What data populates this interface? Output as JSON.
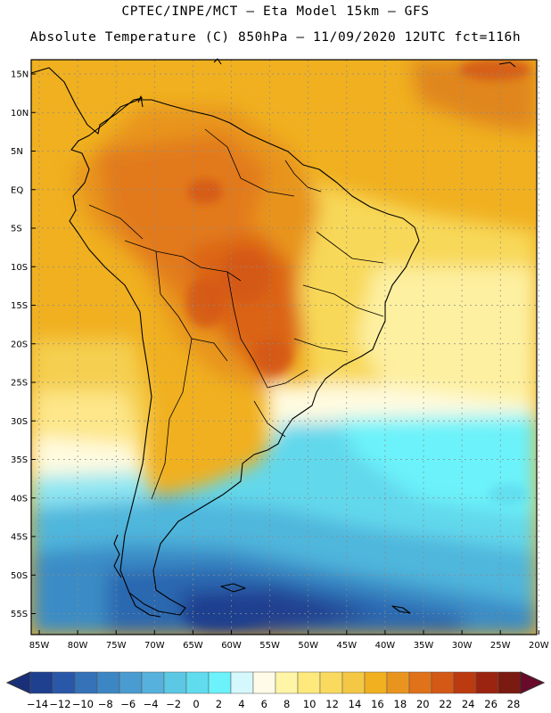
{
  "header": {
    "line1": "CPTEC/INPE/MCT –  Eta Model 15km – GFS",
    "line2": "Absolute Temperature (C) 850hPa – 11/09/2020 12UTC fct=116h"
  },
  "map": {
    "lat_labels": [
      "15N",
      "10N",
      "5N",
      "EQ",
      "5S",
      "10S",
      "15S",
      "20S",
      "25S",
      "30S",
      "35S",
      "40S",
      "45S",
      "50S",
      "55S"
    ],
    "lon_labels": [
      "85W",
      "80W",
      "75W",
      "70W",
      "65W",
      "60W",
      "55W",
      "50W",
      "45W",
      "40W",
      "35W",
      "30W",
      "25W",
      "20W"
    ]
  },
  "colorbar": {
    "labels": [
      "-14",
      "-12",
      "-10",
      "-8",
      "-6",
      "-4",
      "-2",
      "0",
      "2",
      "4",
      "6",
      "8",
      "10",
      "12",
      "14",
      "16",
      "18",
      "20",
      "22",
      "24",
      "26",
      "28"
    ],
    "colors": [
      "#1f3f8f",
      "#2a58a8",
      "#3572b8",
      "#3d86c4",
      "#4a9bd0",
      "#56b2dc",
      "#5cc8e4",
      "#61dcee",
      "#6cf2fa",
      "#d4f8fc",
      "#fffbe8",
      "#fff5a6",
      "#fde97c",
      "#f9da5e",
      "#f4c744",
      "#f0b020",
      "#ea9420",
      "#e0721a",
      "#d45816",
      "#bb3a10",
      "#9a2410",
      "#7a1a10"
    ],
    "under_color": "#1a2f7a",
    "over_color": "#6a0a2a"
  }
}
